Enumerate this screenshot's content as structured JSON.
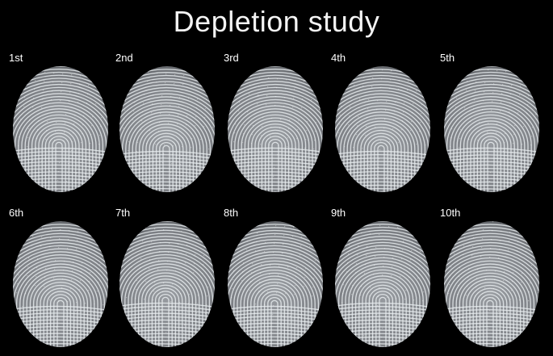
{
  "title": "Depletion study",
  "prints": [
    {
      "label": "1st"
    },
    {
      "label": "2nd"
    },
    {
      "label": "3rd"
    },
    {
      "label": "4th"
    },
    {
      "label": "5th"
    },
    {
      "label": "6th"
    },
    {
      "label": "7th"
    },
    {
      "label": "8th"
    },
    {
      "label": "9th"
    },
    {
      "label": "10th"
    }
  ],
  "colors": {
    "background": "#000000",
    "print_base": "#7c7f84",
    "ridge": "#e8ecef"
  }
}
